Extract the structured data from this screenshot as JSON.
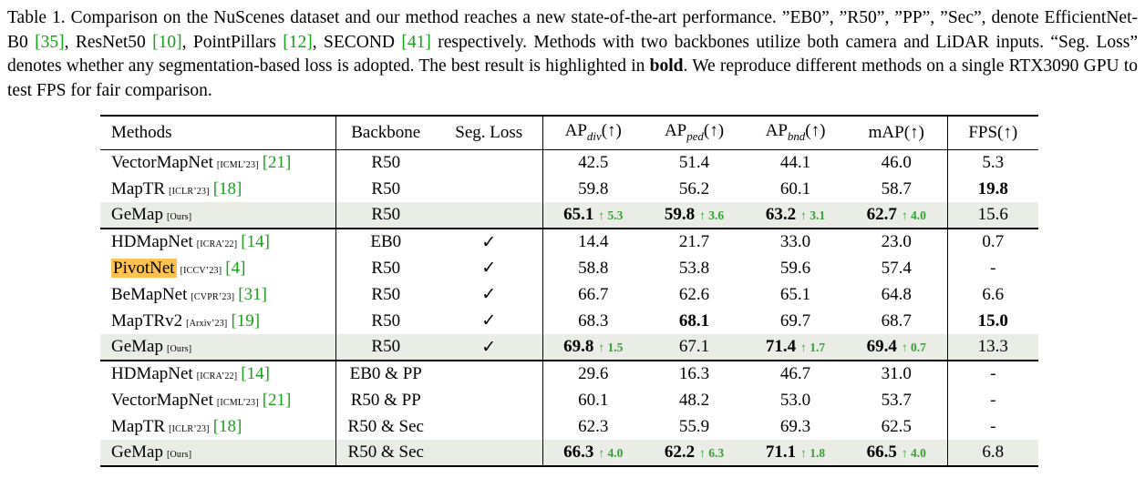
{
  "colors": {
    "citation_green": "#18a018",
    "delta_green": "#2fa52f",
    "ours_row_bg": "#e9ede5",
    "pivotnet_highlight": "#ffc14f"
  },
  "caption": {
    "segments": [
      {
        "text": "Table 1.  Comparison on the NuScenes dataset and our method reaches a new state-of-the-art performance.  ”EB0”, ”R50”, ”PP”, ”Sec”, denote EfficientNet-B0 ",
        "style": "normal"
      },
      {
        "text": "[35]",
        "style": "cite"
      },
      {
        "text": ", ResNet50 ",
        "style": "normal"
      },
      {
        "text": "[10]",
        "style": "cite"
      },
      {
        "text": ", PointPillars ",
        "style": "normal"
      },
      {
        "text": "[12]",
        "style": "cite"
      },
      {
        "text": ", SECOND ",
        "style": "normal"
      },
      {
        "text": "[41]",
        "style": "cite"
      },
      {
        "text": " respectively.  Methods with two backbones utilize both camera and LiDAR inputs.  “Seg. Loss” denotes whether any segmentation-based loss is adopted.  The best result is highlighted in ",
        "style": "normal"
      },
      {
        "text": "bold",
        "style": "bold"
      },
      {
        "text": ". We reproduce different methods on a single RTX3090 GPU to test FPS for fair comparison.",
        "style": "normal"
      }
    ]
  },
  "table": {
    "seg_loss_check": "✓",
    "headers": [
      {
        "key": "methods",
        "text": "Methods"
      },
      {
        "key": "backbone",
        "text": "Backbone"
      },
      {
        "key": "seg-loss",
        "text": "Seg. Loss"
      },
      {
        "key": "ap-div",
        "text": "AP",
        "sub": "div",
        "suffix": "(↑)"
      },
      {
        "key": "ap-ped",
        "text": "AP",
        "sub": "ped",
        "suffix": "(↑)"
      },
      {
        "key": "ap-bnd",
        "text": "AP",
        "sub": "bnd",
        "suffix": "(↑)"
      },
      {
        "key": "map",
        "text": "mAP",
        "suffix": "(↑)"
      },
      {
        "key": "fps",
        "text": "FPS",
        "suffix": "(↑)"
      }
    ],
    "groups": [
      {
        "rows": [
          {
            "method": "VectorMapNet",
            "venue": "[ICML’23]",
            "cite": "[21]",
            "backbone": "R50",
            "seg": false,
            "cells": [
              {
                "v": "42.5"
              },
              {
                "v": "51.4"
              },
              {
                "v": "44.1"
              },
              {
                "v": "46.0"
              },
              {
                "v": "5.3"
              }
            ]
          },
          {
            "method": "MapTR",
            "venue": "[ICLR’23]",
            "cite": "[18]",
            "backbone": "R50",
            "seg": false,
            "cells": [
              {
                "v": "59.8"
              },
              {
                "v": "56.2"
              },
              {
                "v": "60.1"
              },
              {
                "v": "58.7"
              },
              {
                "v": "19.8",
                "b": true
              }
            ]
          },
          {
            "method": "GeMap",
            "venue": "[Ours]",
            "ours": true,
            "backbone": "R50",
            "seg": false,
            "cells": [
              {
                "v": "65.1",
                "b": true,
                "d": "5.3"
              },
              {
                "v": "59.8",
                "b": true,
                "d": "3.6"
              },
              {
                "v": "63.2",
                "b": true,
                "d": "3.1"
              },
              {
                "v": "62.7",
                "b": true,
                "d": "4.0"
              },
              {
                "v": "15.6"
              }
            ]
          }
        ]
      },
      {
        "rows": [
          {
            "method": "HDMapNet",
            "venue": "[ICRA’22]",
            "cite": "[14]",
            "backbone": "EB0",
            "seg": true,
            "cells": [
              {
                "v": "14.4"
              },
              {
                "v": "21.7"
              },
              {
                "v": "33.0"
              },
              {
                "v": "23.0"
              },
              {
                "v": "0.7"
              }
            ]
          },
          {
            "method": "PivotNet",
            "venue": "[ICCV’23]",
            "cite": "[4]",
            "mark": true,
            "backbone": "R50",
            "seg": true,
            "cells": [
              {
                "v": "58.8"
              },
              {
                "v": "53.8"
              },
              {
                "v": "59.6"
              },
              {
                "v": "57.4"
              },
              {
                "v": "-"
              }
            ]
          },
          {
            "method": "BeMapNet",
            "venue": "[CVPR’23]",
            "cite": "[31]",
            "backbone": "R50",
            "seg": true,
            "cells": [
              {
                "v": "66.7"
              },
              {
                "v": "62.6"
              },
              {
                "v": "65.1"
              },
              {
                "v": "64.8"
              },
              {
                "v": "6.6"
              }
            ]
          },
          {
            "method": "MapTRv2",
            "venue": "[Arxiv’23]",
            "cite": "[19]",
            "backbone": "R50",
            "seg": true,
            "cells": [
              {
                "v": "68.3"
              },
              {
                "v": "68.1",
                "b": true
              },
              {
                "v": "69.7"
              },
              {
                "v": "68.7"
              },
              {
                "v": "15.0",
                "b": true
              }
            ]
          },
          {
            "method": "GeMap",
            "venue": "[Ours]",
            "ours": true,
            "backbone": "R50",
            "seg": true,
            "cells": [
              {
                "v": "69.8",
                "b": true,
                "d": "1.5"
              },
              {
                "v": "67.1"
              },
              {
                "v": "71.4",
                "b": true,
                "d": "1.7"
              },
              {
                "v": "69.4",
                "b": true,
                "d": "0.7"
              },
              {
                "v": "13.3"
              }
            ]
          }
        ]
      },
      {
        "rows": [
          {
            "method": "HDMapNet",
            "venue": "[ICRA’22]",
            "cite": "[14]",
            "backbone": "EB0 & PP",
            "seg": false,
            "cells": [
              {
                "v": "29.6"
              },
              {
                "v": "16.3"
              },
              {
                "v": "46.7"
              },
              {
                "v": "31.0"
              },
              {
                "v": "-"
              }
            ]
          },
          {
            "method": "VectorMapNet",
            "venue": "[ICML’23]",
            "cite": "[21]",
            "backbone": "R50 & PP",
            "seg": false,
            "cells": [
              {
                "v": "60.1"
              },
              {
                "v": "48.2"
              },
              {
                "v": "53.0"
              },
              {
                "v": "53.7"
              },
              {
                "v": "-"
              }
            ]
          },
          {
            "method": "MapTR",
            "venue": "[ICLR’23]",
            "cite": "[18]",
            "backbone": "R50 & Sec",
            "seg": false,
            "cells": [
              {
                "v": "62.3"
              },
              {
                "v": "55.9"
              },
              {
                "v": "69.3"
              },
              {
                "v": "62.5"
              },
              {
                "v": "-"
              }
            ]
          },
          {
            "method": "GeMap",
            "venue": "[Ours]",
            "ours": true,
            "backbone": "R50 & Sec",
            "seg": false,
            "cells": [
              {
                "v": "66.3",
                "b": true,
                "d": "4.0"
              },
              {
                "v": "62.2",
                "b": true,
                "d": "6.3"
              },
              {
                "v": "71.1",
                "b": true,
                "d": "1.8"
              },
              {
                "v": "66.5",
                "b": true,
                "d": "4.0"
              },
              {
                "v": "6.8"
              }
            ]
          }
        ]
      }
    ]
  }
}
